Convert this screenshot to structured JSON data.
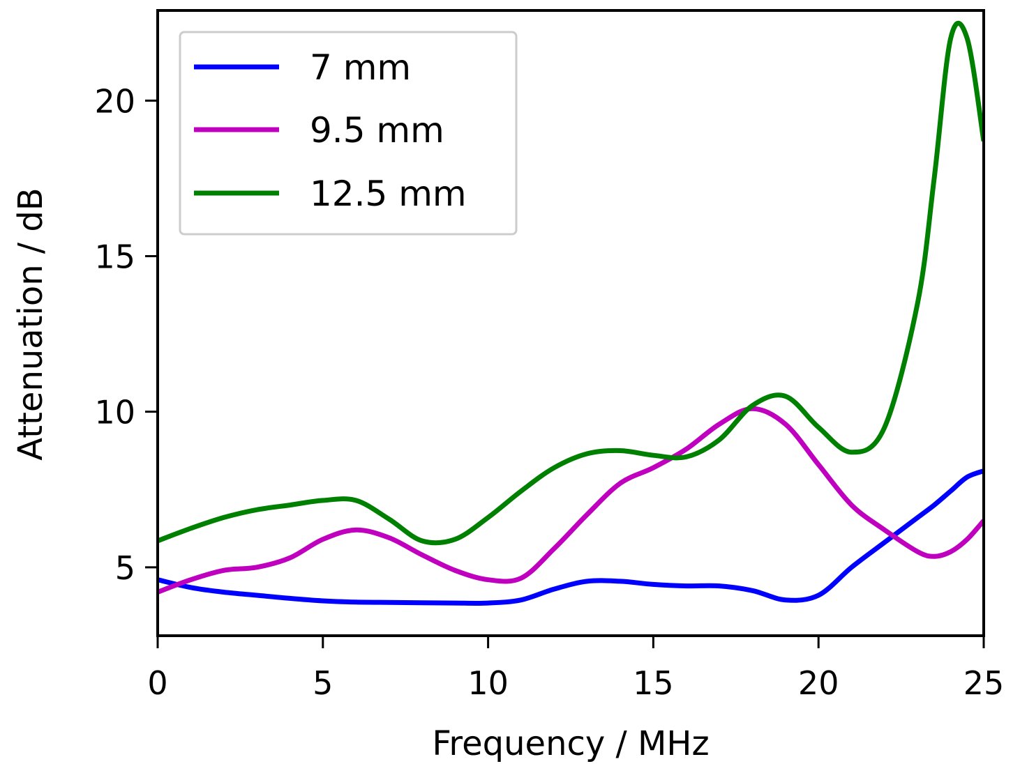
{
  "chart_data": {
    "type": "line",
    "title": "",
    "xlabel": "Frequency / MHz",
    "ylabel": "Attenuation / dB",
    "xlim": [
      0,
      25
    ],
    "ylim": [
      2.8,
      22.9
    ],
    "xticks": [
      0,
      5,
      10,
      15,
      20,
      25
    ],
    "yticks": [
      5,
      10,
      15,
      20
    ],
    "grid": false,
    "legend_position": "upper left",
    "x": [
      0,
      1,
      2,
      3,
      4,
      5,
      6,
      7,
      8,
      9,
      10,
      11,
      12,
      13,
      14,
      15,
      16,
      17,
      18,
      19,
      20,
      21,
      22,
      23,
      23.5,
      24,
      24.5,
      25
    ],
    "series": [
      {
        "name": "7 mm",
        "color": "#0000ff",
        "values": [
          4.6,
          4.35,
          4.2,
          4.1,
          4.0,
          3.92,
          3.88,
          3.87,
          3.86,
          3.85,
          3.85,
          3.95,
          4.3,
          4.55,
          4.55,
          4.45,
          4.4,
          4.4,
          4.25,
          3.95,
          4.1,
          5.0,
          5.8,
          6.6,
          7.0,
          7.45,
          7.9,
          8.1
        ]
      },
      {
        "name": "9.5 mm",
        "color": "#bf00bf",
        "values": [
          4.2,
          4.6,
          4.9,
          5.0,
          5.3,
          5.9,
          6.2,
          5.95,
          5.4,
          4.9,
          4.6,
          4.65,
          5.6,
          6.7,
          7.7,
          8.2,
          8.8,
          9.6,
          10.1,
          9.6,
          8.3,
          7.0,
          6.2,
          5.5,
          5.35,
          5.5,
          5.9,
          6.5
        ]
      },
      {
        "name": "12.5 mm",
        "color": "#008000",
        "values": [
          5.85,
          6.25,
          6.6,
          6.85,
          7.0,
          7.15,
          7.15,
          6.55,
          5.85,
          5.9,
          6.6,
          7.45,
          8.2,
          8.65,
          8.75,
          8.6,
          8.55,
          9.1,
          10.2,
          10.5,
          9.5,
          8.7,
          9.5,
          13.5,
          17.5,
          22.0,
          22.0,
          18.7
        ]
      }
    ]
  },
  "axes": {
    "xlabel": "Frequency / MHz",
    "ylabel": "Attenuation / dB",
    "xtick_labels": [
      "0",
      "5",
      "10",
      "15",
      "20",
      "25"
    ],
    "ytick_labels": [
      "5",
      "10",
      "15",
      "20"
    ]
  },
  "legend": {
    "items": [
      {
        "label": "7 mm",
        "color": "#0000ff"
      },
      {
        "label": "9.5 mm",
        "color": "#bf00bf"
      },
      {
        "label": "12.5 mm",
        "color": "#008000"
      }
    ]
  }
}
